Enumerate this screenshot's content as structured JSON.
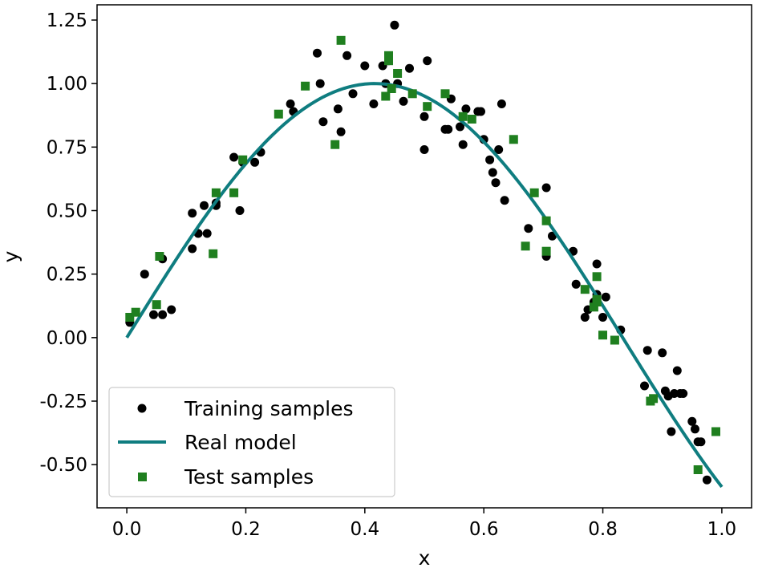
{
  "chart_data": {
    "type": "scatter",
    "xlabel": "x",
    "ylabel": "y",
    "xlim": [
      -0.05,
      1.05
    ],
    "ylim": [
      -0.67,
      1.31
    ],
    "xticks": [
      0.0,
      0.2,
      0.4,
      0.6,
      0.8,
      1.0
    ],
    "xtick_labels": [
      "0.0",
      "0.2",
      "0.4",
      "0.6",
      "0.8",
      "1.0"
    ],
    "yticks": [
      -0.5,
      -0.25,
      0.0,
      0.25,
      0.5,
      0.75,
      1.0,
      1.25
    ],
    "ytick_labels": [
      "-0.50",
      "-0.25",
      "0.00",
      "0.25",
      "0.50",
      "0.75",
      "1.00",
      "1.25"
    ],
    "grid": false,
    "legend_position": "bottom-left",
    "series": [
      {
        "name": "Training samples",
        "kind": "scatter",
        "marker": "circle",
        "color": "#000000",
        "x": [
          0.005,
          0.03,
          0.045,
          0.06,
          0.06,
          0.075,
          0.11,
          0.11,
          0.12,
          0.13,
          0.135,
          0.15,
          0.15,
          0.18,
          0.19,
          0.195,
          0.215,
          0.225,
          0.275,
          0.28,
          0.32,
          0.325,
          0.33,
          0.355,
          0.36,
          0.37,
          0.38,
          0.4,
          0.415,
          0.43,
          0.435,
          0.44,
          0.45,
          0.455,
          0.465,
          0.475,
          0.5,
          0.5,
          0.505,
          0.535,
          0.54,
          0.545,
          0.56,
          0.565,
          0.57,
          0.59,
          0.595,
          0.6,
          0.61,
          0.615,
          0.62,
          0.625,
          0.63,
          0.635,
          0.675,
          0.705,
          0.705,
          0.715,
          0.75,
          0.755,
          0.77,
          0.775,
          0.785,
          0.79,
          0.79,
          0.8,
          0.805,
          0.83,
          0.87,
          0.875,
          0.9,
          0.905,
          0.91,
          0.915,
          0.92,
          0.925,
          0.93,
          0.935,
          0.95,
          0.955,
          0.96,
          0.965,
          0.975
        ],
        "y": [
          0.06,
          0.25,
          0.09,
          0.09,
          0.31,
          0.11,
          0.35,
          0.49,
          0.41,
          0.52,
          0.41,
          0.53,
          0.52,
          0.71,
          0.5,
          0.69,
          0.69,
          0.73,
          0.92,
          0.89,
          1.12,
          1.0,
          0.85,
          0.9,
          0.81,
          1.11,
          0.96,
          1.07,
          0.92,
          1.07,
          1.0,
          1.09,
          1.23,
          1.0,
          0.93,
          1.06,
          0.87,
          0.74,
          1.09,
          0.82,
          0.82,
          0.94,
          0.83,
          0.76,
          0.9,
          0.89,
          0.89,
          0.78,
          0.7,
          0.65,
          0.61,
          0.74,
          0.92,
          0.54,
          0.43,
          0.59,
          0.32,
          0.4,
          0.34,
          0.21,
          0.08,
          0.11,
          0.14,
          0.29,
          0.17,
          0.08,
          0.16,
          0.03,
          -0.19,
          -0.05,
          -0.06,
          -0.21,
          -0.23,
          -0.37,
          -0.22,
          -0.13,
          -0.22,
          -0.22,
          -0.33,
          -0.36,
          -0.41,
          -0.41,
          -0.56
        ]
      },
      {
        "name": "Real model",
        "kind": "line",
        "color": "#0f7d80",
        "function": "sin(2*pi*0.6*x)",
        "x_range": [
          0.0,
          1.0
        ]
      },
      {
        "name": "Test samples",
        "kind": "scatter",
        "marker": "square",
        "color": "#1f7f1f",
        "x": [
          0.005,
          0.015,
          0.05,
          0.055,
          0.145,
          0.15,
          0.18,
          0.195,
          0.255,
          0.3,
          0.35,
          0.36,
          0.435,
          0.44,
          0.44,
          0.44,
          0.445,
          0.455,
          0.48,
          0.505,
          0.535,
          0.565,
          0.58,
          0.65,
          0.67,
          0.685,
          0.705,
          0.705,
          0.77,
          0.785,
          0.79,
          0.79,
          0.79,
          0.8,
          0.82,
          0.88,
          0.885,
          0.96,
          0.99
        ],
        "y": [
          0.08,
          0.1,
          0.13,
          0.32,
          0.33,
          0.57,
          0.57,
          0.7,
          0.88,
          0.99,
          0.76,
          1.17,
          0.95,
          1.09,
          1.11,
          1.1,
          0.98,
          1.04,
          0.96,
          0.91,
          0.96,
          0.87,
          0.86,
          0.78,
          0.36,
          0.57,
          0.46,
          0.34,
          0.19,
          0.12,
          0.15,
          0.24,
          0.14,
          0.01,
          -0.01,
          -0.25,
          -0.24,
          -0.52,
          -0.37
        ]
      }
    ]
  }
}
